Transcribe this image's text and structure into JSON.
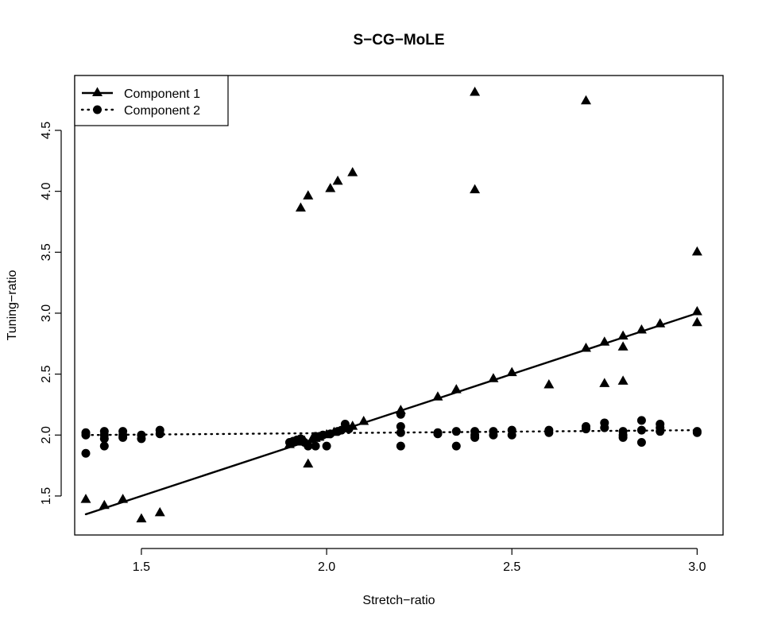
{
  "chart_data": {
    "type": "scatter",
    "title": "S−CG−MoLE",
    "xlabel": "Stretch−ratio",
    "ylabel": "Tuning−ratio",
    "xlim": [
      1.32,
      3.07
    ],
    "ylim": [
      1.18,
      4.95
    ],
    "xticks": [
      "1.5",
      "2.0",
      "2.5",
      "3.0"
    ],
    "yticks": [
      "1.5",
      "2.0",
      "2.5",
      "3.0",
      "3.5",
      "4.0",
      "4.5"
    ],
    "legend": {
      "position": "top-left",
      "entries": [
        "Component 1",
        "Component 2"
      ]
    },
    "series": [
      {
        "name": "Component 1",
        "marker": "triangle",
        "line": "solid",
        "fit_line": [
          [
            1.35,
            1.35
          ],
          [
            3.0,
            3.0
          ]
        ],
        "points": [
          [
            1.35,
            1.47
          ],
          [
            1.4,
            1.42
          ],
          [
            1.45,
            1.47
          ],
          [
            1.5,
            1.31
          ],
          [
            1.55,
            1.36
          ],
          [
            1.9,
            1.92
          ],
          [
            1.92,
            1.94
          ],
          [
            1.93,
            3.86
          ],
          [
            1.94,
            1.95
          ],
          [
            1.95,
            3.96
          ],
          [
            1.95,
            1.76
          ],
          [
            1.96,
            1.96
          ],
          [
            1.97,
            1.97
          ],
          [
            1.98,
            1.98
          ],
          [
            2.0,
            2.0
          ],
          [
            2.01,
            4.02
          ],
          [
            2.02,
            2.02
          ],
          [
            2.03,
            4.08
          ],
          [
            2.05,
            2.05
          ],
          [
            2.07,
            4.15
          ],
          [
            2.07,
            2.07
          ],
          [
            2.1,
            2.11
          ],
          [
            2.2,
            2.2
          ],
          [
            2.3,
            2.31
          ],
          [
            2.35,
            2.37
          ],
          [
            2.4,
            4.81
          ],
          [
            2.4,
            4.01
          ],
          [
            2.45,
            2.46
          ],
          [
            2.5,
            2.51
          ],
          [
            2.6,
            2.41
          ],
          [
            2.7,
            4.74
          ],
          [
            2.7,
            2.71
          ],
          [
            2.75,
            2.76
          ],
          [
            2.75,
            2.42
          ],
          [
            2.8,
            2.81
          ],
          [
            2.8,
            2.72
          ],
          [
            2.8,
            2.44
          ],
          [
            2.85,
            2.86
          ],
          [
            2.9,
            2.91
          ],
          [
            3.0,
            3.5
          ],
          [
            3.0,
            3.01
          ],
          [
            3.0,
            2.92
          ]
        ]
      },
      {
        "name": "Component 2",
        "marker": "circle",
        "line": "dotted",
        "fit_line": [
          [
            1.35,
            2.0
          ],
          [
            3.0,
            2.04
          ]
        ],
        "points": [
          [
            1.35,
            2.02
          ],
          [
            1.35,
            2.0
          ],
          [
            1.35,
            1.85
          ],
          [
            1.4,
            2.03
          ],
          [
            1.4,
            2.0
          ],
          [
            1.4,
            1.97
          ],
          [
            1.4,
            1.91
          ],
          [
            1.45,
            2.03
          ],
          [
            1.45,
            2.0
          ],
          [
            1.45,
            1.98
          ],
          [
            1.5,
            2.0
          ],
          [
            1.5,
            1.97
          ],
          [
            1.55,
            2.04
          ],
          [
            1.55,
            2.01
          ],
          [
            1.9,
            1.94
          ],
          [
            1.91,
            1.95
          ],
          [
            1.92,
            1.96
          ],
          [
            1.93,
            1.97
          ],
          [
            1.94,
            1.94
          ],
          [
            1.95,
            1.91
          ],
          [
            1.97,
            1.91
          ],
          [
            1.97,
            1.99
          ],
          [
            1.99,
            2.0
          ],
          [
            2.0,
            1.91
          ],
          [
            2.01,
            2.01
          ],
          [
            2.03,
            2.03
          ],
          [
            2.04,
            2.04
          ],
          [
            2.05,
            2.09
          ],
          [
            2.06,
            2.05
          ],
          [
            2.2,
            2.17
          ],
          [
            2.2,
            2.07
          ],
          [
            2.2,
            2.02
          ],
          [
            2.2,
            1.91
          ],
          [
            2.3,
            2.02
          ],
          [
            2.3,
            2.01
          ],
          [
            2.35,
            2.03
          ],
          [
            2.35,
            1.91
          ],
          [
            2.4,
            2.03
          ],
          [
            2.4,
            2.0
          ],
          [
            2.4,
            1.98
          ],
          [
            2.45,
            2.03
          ],
          [
            2.45,
            2.0
          ],
          [
            2.5,
            2.04
          ],
          [
            2.5,
            2.0
          ],
          [
            2.6,
            2.04
          ],
          [
            2.6,
            2.02
          ],
          [
            2.7,
            2.07
          ],
          [
            2.7,
            2.05
          ],
          [
            2.75,
            2.1
          ],
          [
            2.75,
            2.06
          ],
          [
            2.8,
            2.03
          ],
          [
            2.8,
            2.0
          ],
          [
            2.8,
            1.98
          ],
          [
            2.85,
            2.12
          ],
          [
            2.85,
            2.04
          ],
          [
            2.85,
            1.94
          ],
          [
            2.9,
            2.09
          ],
          [
            2.9,
            2.06
          ],
          [
            2.9,
            2.03
          ],
          [
            3.0,
            2.03
          ],
          [
            3.0,
            2.02
          ]
        ]
      }
    ]
  }
}
